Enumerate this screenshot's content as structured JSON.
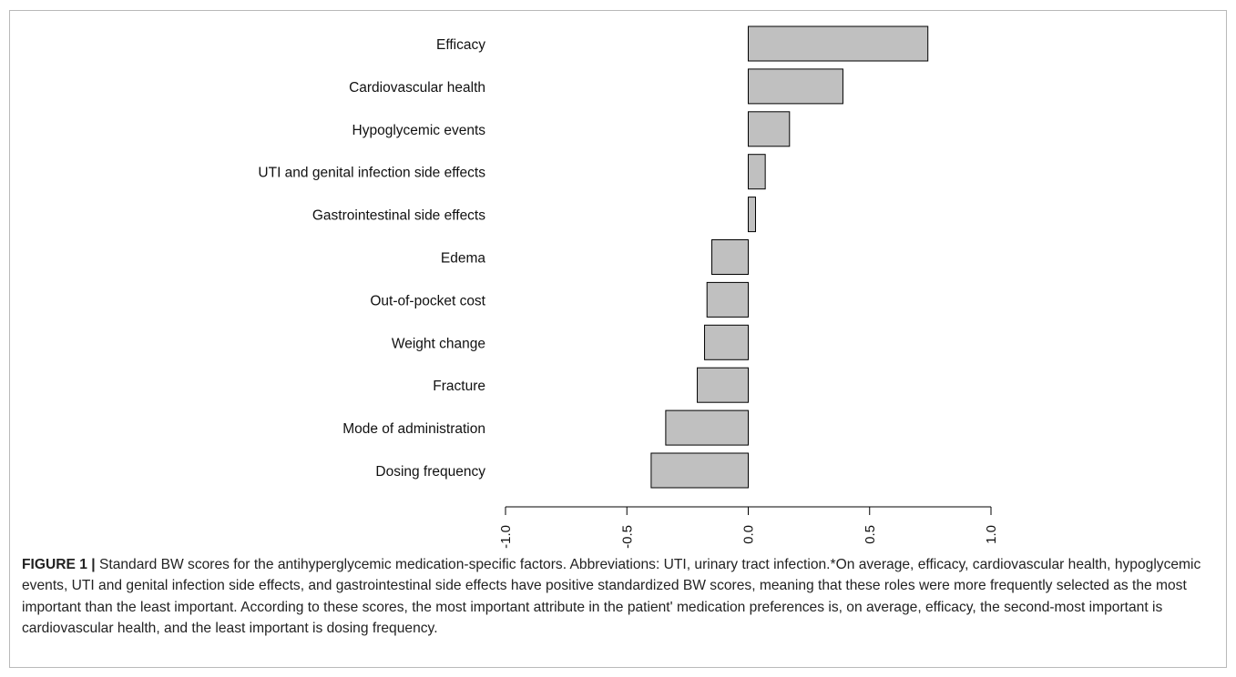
{
  "chart_data": {
    "type": "bar",
    "orientation": "horizontal",
    "categories": [
      "Efficacy",
      "Cardiovascular health",
      "Hypoglycemic events",
      "UTI and genital infection side effects",
      "Gastrointestinal side effects",
      "Edema",
      "Out-of-pocket cost",
      "Weight change",
      "Fracture",
      "Mode of administration",
      "Dosing frequency"
    ],
    "values": [
      0.74,
      0.39,
      0.17,
      0.07,
      0.03,
      -0.15,
      -0.17,
      -0.18,
      -0.21,
      -0.34,
      -0.4
    ],
    "xlim": [
      -1.0,
      1.0
    ],
    "ticks": [
      -1.0,
      -0.5,
      0.0,
      0.5,
      1.0
    ],
    "tick_labels": [
      "-1.0",
      "-0.5",
      "0.0",
      "0.5",
      "1.0"
    ],
    "bar_color": "#c0c0c0",
    "bar_edge_color": "#000000",
    "title": "",
    "xlabel": "",
    "ylabel": "",
    "grid": false,
    "legend": "none"
  },
  "caption": {
    "label": "FIGURE 1 |",
    "text": " Standard BW scores for the antihyperglycemic medication-specific factors. Abbreviations: UTI, urinary tract infection.*On average, efficacy, cardiovascular health, hypoglycemic events, UTI and genital infection side effects, and gastrointestinal side effects have positive standardized BW scores, meaning that these roles were more frequently selected as the most important than the least important. According to these scores, the most important attribute in the patient' medication preferences is, on average, efficacy, the second-most important is cardiovascular health, and the least important is dosing frequency."
  }
}
